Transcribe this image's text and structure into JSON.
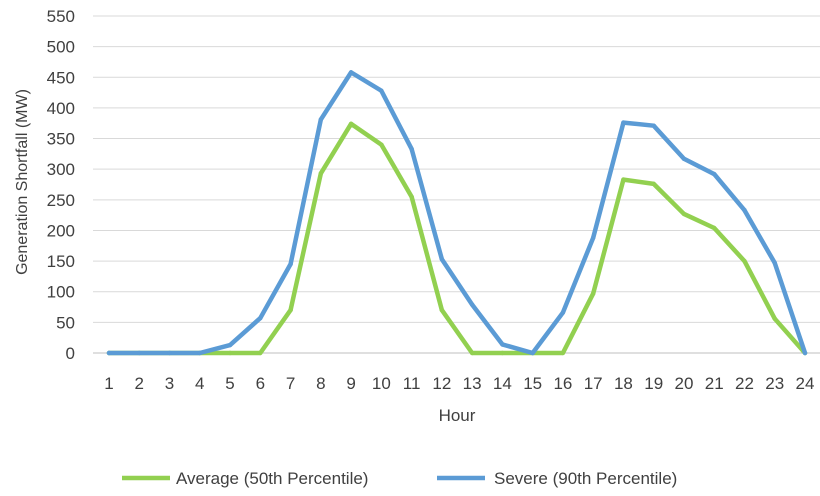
{
  "chart_data": {
    "type": "line",
    "title": "",
    "xlabel": "Hour",
    "ylabel": "Generation Shortfall (MW)",
    "ylim": [
      0,
      550
    ],
    "yticks": [
      0,
      50,
      100,
      150,
      200,
      250,
      300,
      350,
      400,
      450,
      500,
      550
    ],
    "grid": true,
    "legend_position": "bottom",
    "categories": [
      "1",
      "2",
      "3",
      "4",
      "5",
      "6",
      "7",
      "8",
      "9",
      "10",
      "11",
      "12",
      "13",
      "14",
      "15",
      "16",
      "17",
      "18",
      "19",
      "20",
      "21",
      "22",
      "23",
      "24"
    ],
    "series": [
      {
        "name": "Average (50th Percentile)",
        "color": "#92d050",
        "values": [
          0,
          0,
          0,
          0,
          0,
          0,
          70,
          293,
          374,
          340,
          255,
          70,
          0,
          0,
          0,
          0,
          97,
          283,
          276,
          227,
          204,
          150,
          56,
          0
        ]
      },
      {
        "name": "Severe (90th Percentile)",
        "color": "#5b9bd5",
        "values": [
          0,
          0,
          0,
          0,
          13,
          57,
          145,
          381,
          458,
          428,
          333,
          153,
          79,
          14,
          0,
          66,
          188,
          376,
          371,
          317,
          292,
          233,
          147,
          0
        ]
      }
    ]
  }
}
